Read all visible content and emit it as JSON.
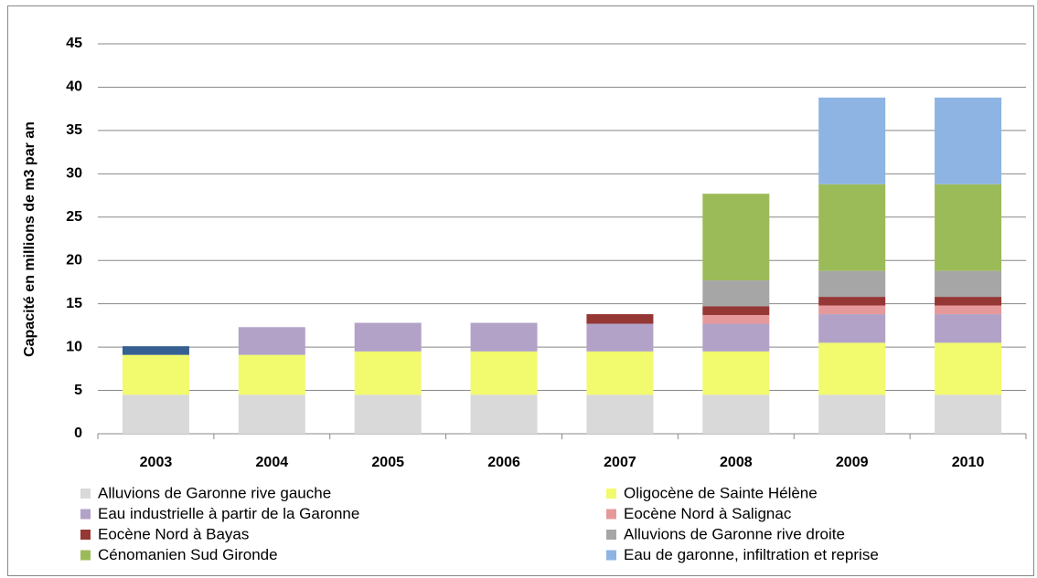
{
  "chart_data": {
    "type": "stacked_bar",
    "y_label": "Capacité en millions de m3 par an",
    "categories": [
      "2003",
      "2004",
      "2005",
      "2006",
      "2007",
      "2008",
      "2009",
      "2010"
    ],
    "series": [
      {
        "name": "Alluvions de Garonne rive gauche",
        "color": "#d9d9d9",
        "values": [
          4.5,
          4.5,
          4.5,
          4.5,
          4.5,
          4.5,
          4.5,
          4.5
        ]
      },
      {
        "name": "Oligocène de Sainte Hélène",
        "color": "#f2fa6e",
        "values": [
          4.6,
          4.6,
          5.0,
          5.0,
          5.0,
          5.0,
          6.0,
          6.0
        ]
      },
      {
        "name": "Eau industrielle à partir de la Garonne",
        "color": "#b3a2c7",
        "values": [
          null,
          3.2,
          3.3,
          3.3,
          3.2,
          3.2,
          3.3,
          3.3
        ]
      },
      {
        "name": "Eocène Nord à Salignac",
        "color": "#e6999a",
        "values": [
          null,
          null,
          null,
          null,
          null,
          1.0,
          1.0,
          1.0
        ]
      },
      {
        "name": "Eocène Nord à Bayas",
        "color": "#953735",
        "values": [
          null,
          null,
          null,
          null,
          1.1,
          1.0,
          1.0,
          1.0
        ]
      },
      {
        "name": "Alluvions de Garonne rive droite",
        "color": "#a6a6a6",
        "values": [
          null,
          null,
          null,
          null,
          null,
          3.0,
          3.0,
          3.0
        ]
      },
      {
        "name": "Cénomanien Sud Gironde",
        "color": "#9bbb59",
        "values": [
          null,
          null,
          null,
          null,
          null,
          10.0,
          10.0,
          10.0
        ]
      },
      {
        "name": "Eau de garonne, infiltration et reprise",
        "color": "#8eb4e3",
        "values": [
          null,
          null,
          null,
          null,
          null,
          null,
          10.0,
          10.0
        ]
      },
      {
        "color": "#376092",
        "values": [
          1.0,
          null,
          null,
          null,
          null,
          null,
          null,
          null
        ]
      }
    ],
    "ylim": [
      0,
      45
    ],
    "yticks": [
      0,
      5,
      10,
      15,
      20,
      25,
      30,
      35,
      40,
      45
    ],
    "grid": true
  }
}
